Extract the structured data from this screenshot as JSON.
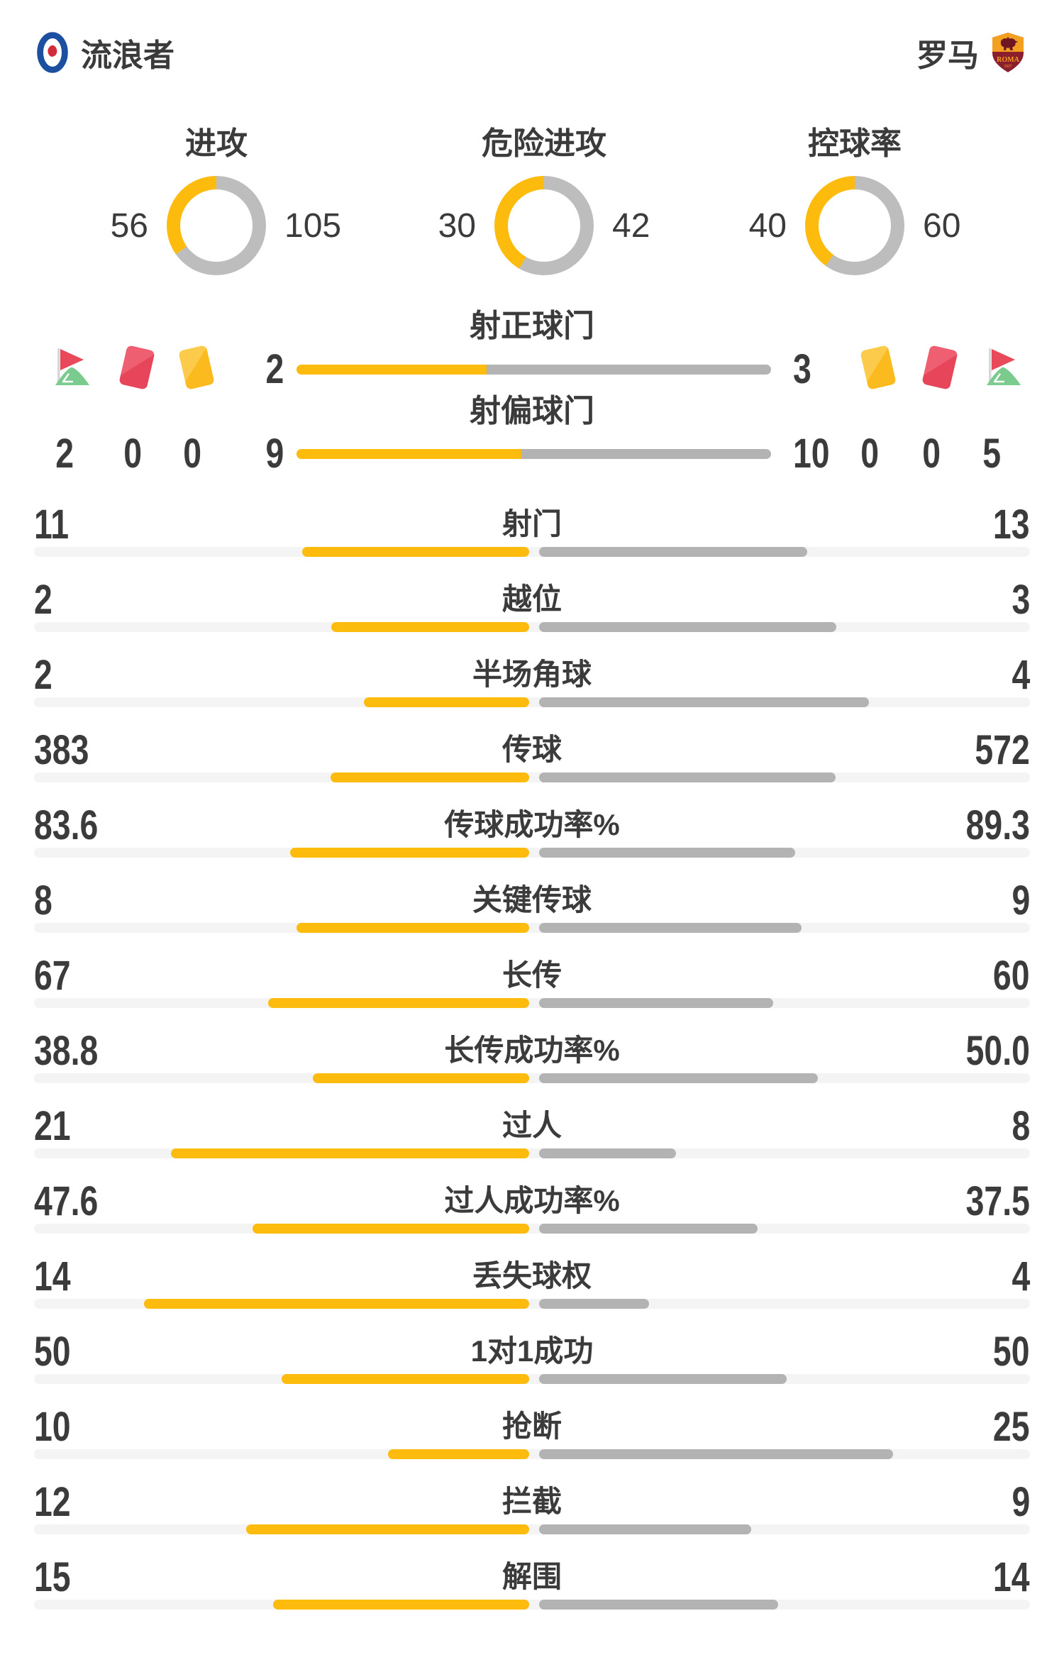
{
  "colors": {
    "amber": "#FCBB0D",
    "bar_gray": "#B3B3B3",
    "track_gray": "#F4F4F4",
    "donut_gray": "#BDBDBD",
    "text": "#3B3B3B",
    "red_card": "#E8495B",
    "yellow_card": "#FBC02D",
    "flag_red": "#E8495B",
    "flag_green": "#7CCB8E",
    "rangers_blue": "#1D4FA1",
    "roma_gold": "#F3A020",
    "roma_maroon": "#8C1F2D"
  },
  "header": {
    "home_team": {
      "name": "流浪者",
      "crest": "rangers-crest"
    },
    "away_team": {
      "name": "罗马",
      "crest": "roma-crest"
    }
  },
  "donut_charts": [
    {
      "label": "进攻",
      "home": 56,
      "away": 105
    },
    {
      "label": "危险进攻",
      "home": 30,
      "away": 42
    },
    {
      "label": "控球率",
      "home": 40,
      "away": 60
    }
  ],
  "shot_rows": [
    {
      "label": "射正球门",
      "home": 2,
      "away": 3
    },
    {
      "label": "射偏球门",
      "home": 9,
      "away": 10
    }
  ],
  "discipline": {
    "left": {
      "icons": [
        "corner-flag",
        "red-card",
        "yellow-card"
      ],
      "counts": [
        2,
        0,
        0
      ]
    },
    "right": {
      "icons": [
        "yellow-card",
        "red-card",
        "corner-flag"
      ],
      "counts": [
        0,
        0,
        5
      ]
    }
  },
  "stats": [
    {
      "label": "射门",
      "home": "11",
      "away": "13"
    },
    {
      "label": "越位",
      "home": "2",
      "away": "3"
    },
    {
      "label": "半场角球",
      "home": "2",
      "away": "4"
    },
    {
      "label": "传球",
      "home": "383",
      "away": "572"
    },
    {
      "label": "传球成功率%",
      "home": "83.6",
      "away": "89.3"
    },
    {
      "label": "关键传球",
      "home": "8",
      "away": "9"
    },
    {
      "label": "长传",
      "home": "67",
      "away": "60"
    },
    {
      "label": "长传成功率%",
      "home": "38.8",
      "away": "50.0"
    },
    {
      "label": "过人",
      "home": "21",
      "away": "8"
    },
    {
      "label": "过人成功率%",
      "home": "47.6",
      "away": "37.5"
    },
    {
      "label": "丢失球权",
      "home": "14",
      "away": "4"
    },
    {
      "label": "1对1成功",
      "home": "50",
      "away": "50"
    },
    {
      "label": "抢断",
      "home": "10",
      "away": "25"
    },
    {
      "label": "拦截",
      "home": "12",
      "away": "9"
    },
    {
      "label": "解围",
      "home": "15",
      "away": "14"
    }
  ],
  "chart_data": {
    "type": "bar",
    "teams": [
      "流浪者",
      "罗马"
    ],
    "donuts": [
      {
        "title": "进攻",
        "values": {
          "流浪者": 56,
          "罗马": 105
        }
      },
      {
        "title": "危险进攻",
        "values": {
          "流浪者": 30,
          "罗马": 42
        }
      },
      {
        "title": "控球率",
        "values": {
          "流浪者": 40,
          "罗马": 60
        }
      }
    ],
    "shots": [
      {
        "title": "射正球门",
        "values": {
          "流浪者": 2,
          "罗马": 3
        }
      },
      {
        "title": "射偏球门",
        "values": {
          "流浪者": 9,
          "罗马": 10
        }
      }
    ],
    "cards_corners": {
      "流浪者": {
        "corners": 2,
        "red_cards": 0,
        "yellow_cards": 0
      },
      "罗马": {
        "yellow_cards": 0,
        "red_cards": 0,
        "corners": 5
      }
    },
    "categories": [
      "射门",
      "越位",
      "半场角球",
      "传球",
      "传球成功率%",
      "关键传球",
      "长传",
      "长传成功率%",
      "过人",
      "过人成功率%",
      "丢失球权",
      "1对1成功",
      "抢断",
      "拦截",
      "解围"
    ],
    "series": [
      {
        "name": "流浪者",
        "values": [
          11,
          2,
          2,
          383,
          83.6,
          8,
          67,
          38.8,
          21,
          47.6,
          14,
          50,
          10,
          12,
          15
        ]
      },
      {
        "name": "罗马",
        "values": [
          13,
          3,
          4,
          572,
          89.3,
          9,
          60,
          50.0,
          8,
          37.5,
          4,
          50,
          25,
          9,
          14
        ]
      }
    ],
    "legend_position": "none",
    "grid": false,
    "note": "each bar pair is normalized: length = value / (home+away)"
  }
}
